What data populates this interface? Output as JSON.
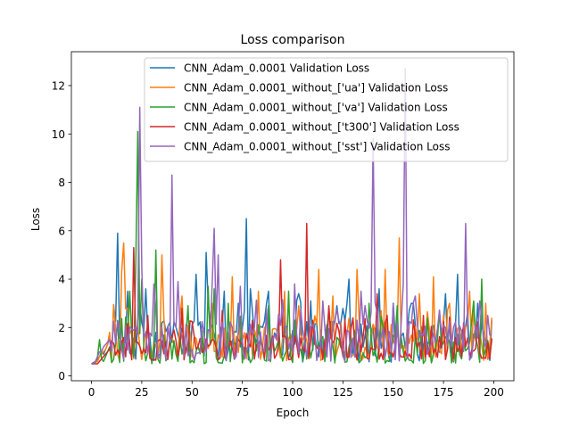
{
  "chart_data": {
    "type": "line",
    "title": "Loss comparison",
    "xlabel": "Epoch",
    "ylabel": "Loss",
    "xlim": [
      -10,
      210
    ],
    "ylim": [
      -0.2,
      13.4
    ],
    "xticks": [
      0,
      25,
      50,
      75,
      100,
      125,
      150,
      175,
      200
    ],
    "yticks": [
      0,
      2,
      4,
      6,
      8,
      10,
      12
    ],
    "grid": false,
    "legend_position": "upper right",
    "series": [
      {
        "name": "CNN_Adam_0.0001 Validation Loss",
        "color": "#1f77b4",
        "baseline": 1.4,
        "amp": 0.9,
        "floor": 0.55,
        "start": [
          0.5,
          0.55,
          0.6,
          0.7,
          0.8,
          1.0,
          0.9,
          1.1,
          1.3,
          1.6
        ],
        "peaks": [
          [
            11,
            2.9
          ],
          [
            13,
            5.9
          ],
          [
            18,
            3.5
          ],
          [
            27,
            3.6
          ],
          [
            52,
            4.2
          ],
          [
            57,
            5.1
          ],
          [
            66,
            3.5
          ],
          [
            73,
            3.0
          ],
          [
            77,
            6.5
          ],
          [
            79,
            3.6
          ],
          [
            88,
            3.5
          ],
          [
            103,
            3.4
          ],
          [
            109,
            3.1
          ],
          [
            122,
            2.9
          ],
          [
            128,
            4.0
          ],
          [
            143,
            3.6
          ],
          [
            150,
            3.0
          ],
          [
            160,
            3.0
          ],
          [
            176,
            3.4
          ],
          [
            182,
            4.2
          ],
          [
            192,
            3.0
          ],
          [
            199,
            2.3
          ]
        ]
      },
      {
        "name": "CNN_Adam_0.0001_without_['ua'] Validation Loss",
        "color": "#ff7f0e",
        "baseline": 1.3,
        "amp": 0.85,
        "floor": 0.6,
        "start": [
          0.5,
          0.5,
          0.55,
          0.6,
          0.8,
          0.9,
          1.0,
          1.1,
          1.3,
          1.5
        ],
        "peaks": [
          [
            9,
            1.8
          ],
          [
            15,
            4.3
          ],
          [
            16,
            5.5
          ],
          [
            35,
            5.0
          ],
          [
            45,
            3.3
          ],
          [
            60,
            3.0
          ],
          [
            70,
            4.1
          ],
          [
            83,
            3.5
          ],
          [
            96,
            3.5
          ],
          [
            103,
            2.9
          ],
          [
            113,
            4.4
          ],
          [
            120,
            3.3
          ],
          [
            132,
            4.4
          ],
          [
            146,
            4.4
          ],
          [
            153,
            5.7
          ],
          [
            163,
            3.4
          ],
          [
            170,
            4.1
          ],
          [
            178,
            3.0
          ],
          [
            188,
            3.5
          ],
          [
            196,
            3.0
          ]
        ]
      },
      {
        "name": "CNN_Adam_0.0001_without_['va'] Validation Loss",
        "color": "#2ca02c",
        "baseline": 1.0,
        "amp": 0.75,
        "floor": 0.5,
        "start": [
          0.5,
          0.5,
          0.6,
          0.8,
          1.5,
          0.7,
          0.6,
          0.8,
          1.0,
          1.2
        ],
        "peaks": [
          [
            19,
            3.5
          ],
          [
            22,
            4.5
          ],
          [
            23,
            10.1
          ],
          [
            25,
            4.0
          ],
          [
            32,
            5.2
          ],
          [
            48,
            2.9
          ],
          [
            58,
            3.7
          ],
          [
            61,
            3.6
          ],
          [
            68,
            3.0
          ],
          [
            88,
            2.9
          ],
          [
            98,
            3.5
          ],
          [
            118,
            2.8
          ],
          [
            138,
            3.0
          ],
          [
            152,
            2.9
          ],
          [
            173,
            2.7
          ],
          [
            190,
            3.1
          ],
          [
            194,
            4.0
          ]
        ]
      },
      {
        "name": "CNN_Adam_0.0001_without_['t300'] Validation Loss",
        "color": "#d62728",
        "baseline": 1.0,
        "amp": 0.7,
        "floor": 0.65,
        "start": [
          0.5,
          0.5,
          0.5,
          0.5,
          0.6,
          0.7,
          0.8,
          0.9,
          1.0,
          1.1
        ],
        "peaks": [
          [
            21,
            5.3
          ],
          [
            28,
            2.5
          ],
          [
            45,
            2.8
          ],
          [
            65,
            2.7
          ],
          [
            80,
            2.3
          ],
          [
            94,
            4.8
          ],
          [
            107,
            6.3
          ],
          [
            118,
            2.9
          ],
          [
            130,
            2.4
          ],
          [
            142,
            3.4
          ],
          [
            147,
            2.5
          ],
          [
            165,
            2.5
          ],
          [
            185,
            2.2
          ],
          [
            197,
            1.4
          ]
        ]
      },
      {
        "name": "CNN_Adam_0.0001_without_['sst'] Validation Loss",
        "color": "#9467bd",
        "baseline": 1.4,
        "amp": 0.9,
        "floor": 0.6,
        "start": [
          0.5,
          0.5,
          0.6,
          0.8,
          1.0,
          1.0,
          1.2,
          1.3,
          1.4,
          1.5
        ],
        "peaks": [
          [
            24,
            11.1
          ],
          [
            25,
            4.5
          ],
          [
            31,
            3.8
          ],
          [
            40,
            8.3
          ],
          [
            43,
            3.9
          ],
          [
            60,
            3.8
          ],
          [
            61,
            6.1
          ],
          [
            63,
            5.0
          ],
          [
            74,
            3.7
          ],
          [
            101,
            3.8
          ],
          [
            115,
            3.1
          ],
          [
            134,
            3.5
          ],
          [
            140,
            9.8
          ],
          [
            155,
            3.8
          ],
          [
            156,
            12.7
          ],
          [
            161,
            3.3
          ],
          [
            186,
            6.3
          ],
          [
            193,
            3.1
          ],
          [
            197,
            2.5
          ]
        ]
      }
    ]
  }
}
